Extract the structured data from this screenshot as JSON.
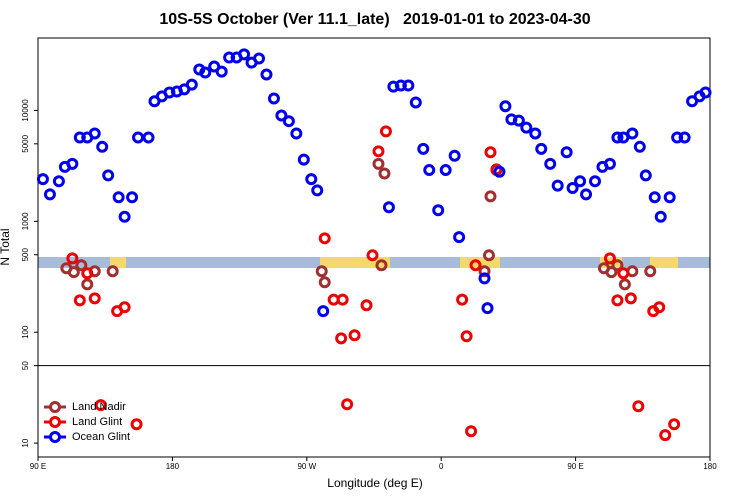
{
  "chart_data": {
    "type": "scatter",
    "title": "10S-5S October (Ver 11.1_late)   2019-01-01 to 2023-04-30",
    "xlabel": "Longitude (deg E)",
    "ylabel": "N Total",
    "xlim": [
      90,
      540
    ],
    "xticks": [
      {
        "value": 90,
        "label": "90 E"
      },
      180,
      {
        "value": 270,
        "label": "90 W"
      },
      {
        "value": 360,
        "label": "0"
      },
      {
        "value": 450,
        "label": "90 E"
      },
      {
        "value": 540,
        "label": "180"
      }
    ],
    "ylim": [
      7.5,
      45000
    ],
    "yticks": [
      10,
      50,
      100,
      500,
      1000,
      5000,
      10000
    ],
    "log_y": true,
    "hline": 50,
    "legend": "lower left",
    "series": [
      {
        "name": "Land Nadir",
        "color": "#a03030",
        "x": [
          109,
          114,
          119,
          123,
          128,
          140,
          280,
          282,
          318,
          320,
          322,
          389,
          392,
          393,
          397,
          469,
          474,
          478,
          483,
          488,
          500
        ],
        "values": [
          378,
          348,
          402,
          270,
          355,
          355,
          355,
          282,
          3300,
          402,
          2700,
          355,
          494,
          1680,
          2900,
          378,
          348,
          402,
          270,
          355,
          355
        ]
      },
      {
        "name": "Land Glint",
        "color": "#ee0000",
        "x": [
          113,
          118,
          123,
          128,
          132,
          143,
          148,
          156,
          282,
          288,
          294,
          293,
          302,
          310,
          314,
          318,
          323,
          297,
          374,
          377,
          380,
          383,
          393,
          397,
          473,
          478,
          482,
          487,
          492,
          502,
          506,
          510,
          516
        ],
        "values": [
          464,
          194,
          340,
          202,
          22,
          155,
          168,
          14.8,
          703,
          197,
          197,
          88,
          94,
          175,
          494,
          4280,
          6470,
          22.4,
          197,
          92,
          12.8,
          402,
          4200,
          2940,
          464,
          194,
          340,
          202,
          21.5,
          155,
          168,
          11.8,
          14.8
        ]
      },
      {
        "name": "Ocean Glint",
        "color": "#0000ee",
        "x": [
          93.3,
          98,
          104,
          108,
          113,
          118,
          123,
          128,
          133,
          137,
          144,
          148,
          153,
          157,
          164,
          168,
          173,
          178,
          183,
          188,
          193,
          198,
          202,
          208,
          213,
          218,
          223,
          228,
          233,
          238,
          243,
          248,
          253,
          258,
          263,
          268,
          273,
          277,
          281,
          325,
          328,
          333,
          338,
          343,
          348,
          352,
          358,
          363,
          369,
          372,
          389,
          391,
          399,
          403,
          407,
          412,
          417,
          423,
          427,
          433,
          438,
          444,
          448,
          453,
          457,
          463,
          468,
          473,
          478,
          482,
          488,
          493,
          497,
          503,
          507,
          513,
          518,
          523,
          528,
          533,
          537
        ],
        "values": [
          2400,
          1750,
          2300,
          3100,
          3300,
          5700,
          5700,
          6200,
          4700,
          2600,
          1650,
          1100,
          1650,
          5700,
          5700,
          12100,
          13400,
          14500,
          14800,
          15500,
          17100,
          23400,
          22000,
          24900,
          22400,
          30000,
          30000,
          32000,
          27000,
          29400,
          21100,
          12800,
          9000,
          8000,
          6200,
          3600,
          2400,
          1900,
          155,
          1340,
          16400,
          16800,
          16800,
          11800,
          4500,
          2900,
          1260,
          2900,
          3900,
          720,
          306,
          165,
          2800,
          10900,
          8300,
          8100,
          7000,
          6200,
          4500,
          3300,
          2100,
          4200,
          2000,
          2300,
          1750,
          2300,
          3100,
          3300,
          5700,
          5700,
          6200,
          4700,
          2600,
          1650,
          1100,
          1650,
          5700,
          5700,
          12100,
          13400,
          14500
        ]
      }
    ]
  }
}
